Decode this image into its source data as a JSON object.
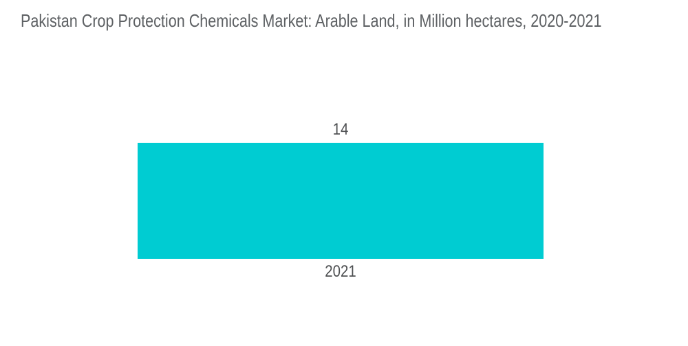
{
  "title": "Pakistan Crop Protection Chemicals Market: Arable Land, in Million hectares, 2020-2021",
  "colors": {
    "background": "#FFFFFF",
    "bar": "#00CCD2",
    "title_text": "#5D6063",
    "label_text": "#4E5052"
  },
  "chart_data": {
    "type": "bar",
    "orientation": "vertical",
    "title": "Pakistan Crop Protection Chemicals Market: Arable Land, in Million hectares, 2020-2021",
    "categories": [
      "2021"
    ],
    "values": [
      14
    ],
    "value_label_texts": [
      "14"
    ],
    "xlabel": "",
    "ylabel": "",
    "unit": "Million hectares",
    "bar_color": "#00CCD2",
    "grid": false,
    "legend": false,
    "axes_visible": false,
    "value_labels_visible": true
  }
}
